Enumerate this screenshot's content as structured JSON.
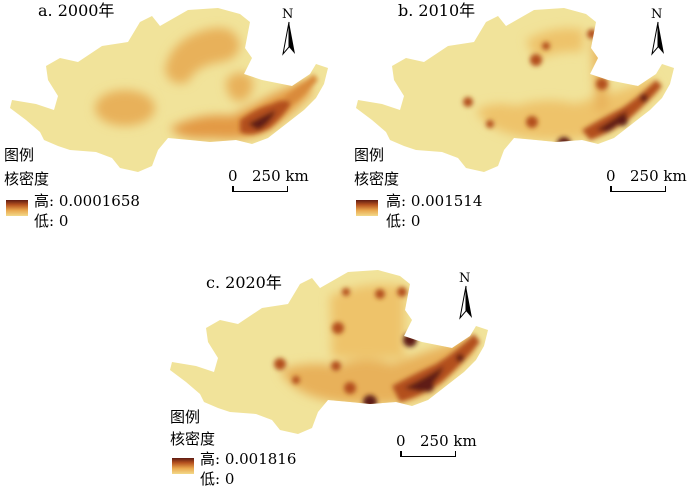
{
  "colors": {
    "base": "#f1e39a",
    "low": "#eec36a",
    "mid": "#e39a45",
    "high": "#b3501f",
    "peak": "#5e1a12"
  },
  "panels": [
    {
      "title": "a. 2000年",
      "legend_title": "图例",
      "legend_subtitle": "核密度",
      "high_label": "高: 0.0001658",
      "low_label": "低: 0",
      "scale_zero": "0",
      "scale_value": "250 km",
      "north_label": "N"
    },
    {
      "title": "b. 2010年",
      "legend_title": "图例",
      "legend_subtitle": "核密度",
      "high_label": "高: 0.001514",
      "low_label": "低: 0",
      "scale_zero": "0",
      "scale_value": "250 km",
      "north_label": "N"
    },
    {
      "title": "c. 2020年",
      "legend_title": "图例",
      "legend_subtitle": "核密度",
      "high_label": "高: 0.001816",
      "low_label": "低: 0",
      "scale_zero": "0",
      "scale_value": "250 km",
      "north_label": "N"
    }
  ]
}
